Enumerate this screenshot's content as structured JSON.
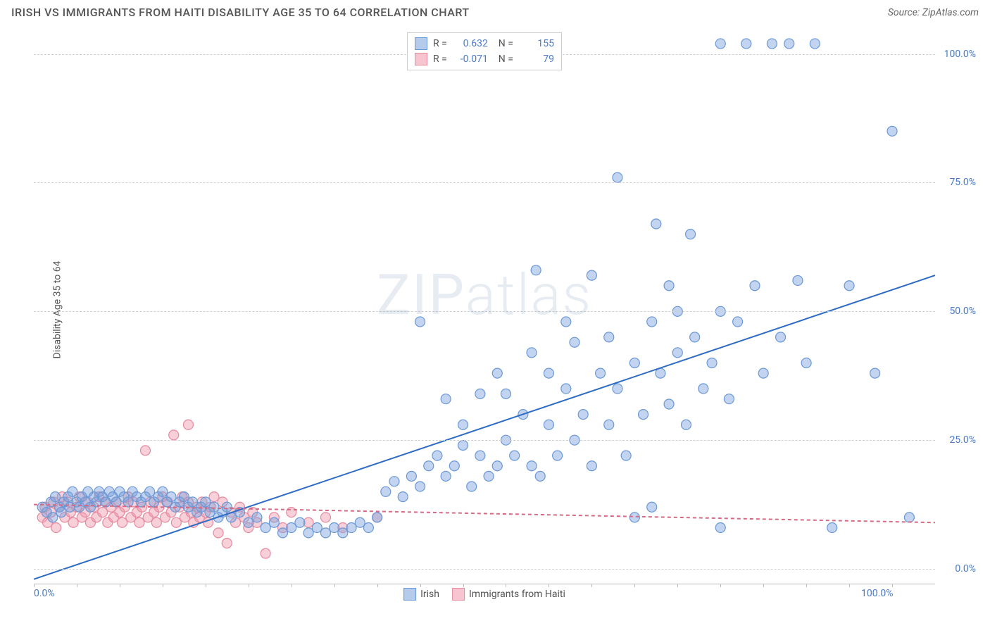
{
  "header": {
    "title": "IRISH VS IMMIGRANTS FROM HAITI DISABILITY AGE 35 TO 64 CORRELATION CHART",
    "source": "Source: ZipAtlas.com"
  },
  "chart": {
    "type": "scatter",
    "ylabel": "Disability Age 35 to 64",
    "xlim": [
      0,
      105
    ],
    "ylim": [
      -3,
      105
    ],
    "ytick_values": [
      0,
      25,
      50,
      75,
      100
    ],
    "ytick_labels": [
      "0.0%",
      "25.0%",
      "50.0%",
      "75.0%",
      "100.0%"
    ],
    "xtick_values_minor": [
      0,
      5,
      10,
      15,
      20,
      25,
      30,
      35,
      40,
      45,
      50,
      55,
      60,
      65,
      70,
      75,
      80,
      85,
      90,
      95,
      100
    ],
    "xtick_labels": {
      "0": "0.0%",
      "100": "100.0%"
    },
    "grid_color": "#d0d0d0",
    "axis_color": "#bbbbbb",
    "background_color": "#ffffff",
    "marker_radius": 7,
    "marker_stroke_width": 1.2,
    "line_width": 2,
    "dash_pattern": "5,4",
    "watermark": "ZIPatlas",
    "series": [
      {
        "name": "Irish",
        "fill_color": "rgba(120,160,220,0.45)",
        "stroke_color": "#6b98d6",
        "trend_color": "#2d6bc4",
        "trend_solid": true,
        "trend": {
          "x1": 0,
          "y1": -2,
          "x2": 105,
          "y2": 57
        },
        "R": "0.632",
        "N": "155",
        "points": [
          [
            1,
            12
          ],
          [
            1.5,
            11
          ],
          [
            2,
            13
          ],
          [
            2.2,
            10
          ],
          [
            2.5,
            14
          ],
          [
            3,
            12
          ],
          [
            3.2,
            11
          ],
          [
            3.5,
            13
          ],
          [
            4,
            14
          ],
          [
            4.2,
            12
          ],
          [
            4.5,
            15
          ],
          [
            5,
            13
          ],
          [
            5.3,
            12
          ],
          [
            5.6,
            14
          ],
          [
            6,
            13
          ],
          [
            6.3,
            15
          ],
          [
            6.6,
            12
          ],
          [
            7,
            14
          ],
          [
            7.3,
            13
          ],
          [
            7.6,
            15
          ],
          [
            8,
            14
          ],
          [
            8.4,
            13
          ],
          [
            8.8,
            15
          ],
          [
            9.2,
            14
          ],
          [
            9.6,
            13
          ],
          [
            10,
            15
          ],
          [
            10.5,
            14
          ],
          [
            11,
            13
          ],
          [
            11.5,
            15
          ],
          [
            12,
            14
          ],
          [
            12.5,
            13
          ],
          [
            13,
            14
          ],
          [
            13.5,
            15
          ],
          [
            14,
            13
          ],
          [
            14.5,
            14
          ],
          [
            15,
            15
          ],
          [
            15.5,
            13
          ],
          [
            16,
            14
          ],
          [
            16.5,
            12
          ],
          [
            17,
            13
          ],
          [
            17.5,
            14
          ],
          [
            18,
            12
          ],
          [
            18.5,
            13
          ],
          [
            19,
            11
          ],
          [
            19.5,
            12
          ],
          [
            20,
            13
          ],
          [
            20.5,
            11
          ],
          [
            21,
            12
          ],
          [
            21.5,
            10
          ],
          [
            22,
            11
          ],
          [
            22.5,
            12
          ],
          [
            23,
            10
          ],
          [
            24,
            11
          ],
          [
            25,
            9
          ],
          [
            26,
            10
          ],
          [
            27,
            8
          ],
          [
            28,
            9
          ],
          [
            29,
            7
          ],
          [
            30,
            8
          ],
          [
            31,
            9
          ],
          [
            32,
            7
          ],
          [
            33,
            8
          ],
          [
            34,
            7
          ],
          [
            35,
            8
          ],
          [
            36,
            7
          ],
          [
            37,
            8
          ],
          [
            38,
            9
          ],
          [
            39,
            8
          ],
          [
            40,
            10
          ],
          [
            41,
            15
          ],
          [
            42,
            17
          ],
          [
            43,
            14
          ],
          [
            44,
            18
          ],
          [
            45,
            16
          ],
          [
            45,
            48
          ],
          [
            46,
            20
          ],
          [
            47,
            22
          ],
          [
            48,
            18
          ],
          [
            48,
            33
          ],
          [
            49,
            20
          ],
          [
            50,
            24
          ],
          [
            50,
            28
          ],
          [
            51,
            16
          ],
          [
            52,
            22
          ],
          [
            52,
            34
          ],
          [
            53,
            18
          ],
          [
            54,
            20
          ],
          [
            54,
            38
          ],
          [
            55,
            25
          ],
          [
            55,
            34
          ],
          [
            56,
            22
          ],
          [
            57,
            30
          ],
          [
            58,
            20
          ],
          [
            58,
            42
          ],
          [
            58.5,
            58
          ],
          [
            59,
            18
          ],
          [
            60,
            28
          ],
          [
            60,
            38
          ],
          [
            61,
            22
          ],
          [
            62,
            35
          ],
          [
            62,
            48
          ],
          [
            63,
            25
          ],
          [
            63,
            44
          ],
          [
            64,
            30
          ],
          [
            65,
            20
          ],
          [
            65,
            57
          ],
          [
            66,
            38
          ],
          [
            67,
            28
          ],
          [
            67,
            45
          ],
          [
            68,
            35
          ],
          [
            68,
            76
          ],
          [
            69,
            22
          ],
          [
            70,
            40
          ],
          [
            70,
            10
          ],
          [
            71,
            30
          ],
          [
            72,
            48
          ],
          [
            72,
            12
          ],
          [
            72.5,
            67
          ],
          [
            73,
            38
          ],
          [
            74,
            32
          ],
          [
            74,
            55
          ],
          [
            75,
            42
          ],
          [
            75,
            50
          ],
          [
            76,
            28
          ],
          [
            76.5,
            65
          ],
          [
            77,
            45
          ],
          [
            78,
            35
          ],
          [
            79,
            40
          ],
          [
            80,
            8
          ],
          [
            80,
            50
          ],
          [
            80,
            102
          ],
          [
            81,
            33
          ],
          [
            82,
            48
          ],
          [
            83,
            102
          ],
          [
            84,
            55
          ],
          [
            85,
            38
          ],
          [
            86,
            102
          ],
          [
            87,
            45
          ],
          [
            88,
            102
          ],
          [
            89,
            56
          ],
          [
            90,
            40
          ],
          [
            91,
            102
          ],
          [
            93,
            8
          ],
          [
            95,
            55
          ],
          [
            98,
            38
          ],
          [
            100,
            85
          ],
          [
            102,
            10
          ]
        ]
      },
      {
        "name": "Immigrants from Haiti",
        "fill_color": "rgba(240,150,170,0.45)",
        "stroke_color": "#e68aa0",
        "trend_color": "#d46a85",
        "trend_solid": false,
        "trend": {
          "x1": 0,
          "y1": 12.5,
          "x2": 105,
          "y2": 9
        },
        "R": "-0.071",
        "N": "79",
        "points": [
          [
            1,
            10
          ],
          [
            1.3,
            12
          ],
          [
            1.6,
            9
          ],
          [
            2,
            11
          ],
          [
            2.3,
            13
          ],
          [
            2.6,
            8
          ],
          [
            3,
            12
          ],
          [
            3.3,
            14
          ],
          [
            3.6,
            10
          ],
          [
            4,
            13
          ],
          [
            4.3,
            11
          ],
          [
            4.6,
            9
          ],
          [
            5,
            12
          ],
          [
            5.3,
            14
          ],
          [
            5.6,
            10
          ],
          [
            6,
            11
          ],
          [
            6.3,
            13
          ],
          [
            6.6,
            9
          ],
          [
            7,
            12
          ],
          [
            7.3,
            10
          ],
          [
            7.6,
            14
          ],
          [
            8,
            11
          ],
          [
            8.3,
            13
          ],
          [
            8.6,
            9
          ],
          [
            9,
            12
          ],
          [
            9.3,
            10
          ],
          [
            9.6,
            13
          ],
          [
            10,
            11
          ],
          [
            10.3,
            9
          ],
          [
            10.6,
            12
          ],
          [
            11,
            14
          ],
          [
            11.3,
            10
          ],
          [
            11.6,
            13
          ],
          [
            12,
            11
          ],
          [
            12.3,
            9
          ],
          [
            12.6,
            12
          ],
          [
            13,
            23
          ],
          [
            13.3,
            10
          ],
          [
            13.6,
            13
          ],
          [
            14,
            11
          ],
          [
            14.3,
            9
          ],
          [
            14.6,
            12
          ],
          [
            15,
            14
          ],
          [
            15.3,
            10
          ],
          [
            15.6,
            13
          ],
          [
            16,
            11
          ],
          [
            16.3,
            26
          ],
          [
            16.6,
            9
          ],
          [
            17,
            12
          ],
          [
            17.3,
            14
          ],
          [
            17.6,
            10
          ],
          [
            18,
            13
          ],
          [
            18,
            28
          ],
          [
            18.3,
            11
          ],
          [
            18.6,
            9
          ],
          [
            19,
            12
          ],
          [
            19.3,
            10
          ],
          [
            19.6,
            13
          ],
          [
            20,
            11
          ],
          [
            20.3,
            9
          ],
          [
            20.6,
            12
          ],
          [
            21,
            14
          ],
          [
            21.5,
            7
          ],
          [
            22,
            13
          ],
          [
            22.5,
            5
          ],
          [
            23,
            11
          ],
          [
            23.5,
            9
          ],
          [
            24,
            12
          ],
          [
            24.5,
            10
          ],
          [
            25,
            8
          ],
          [
            25.5,
            11
          ],
          [
            26,
            9
          ],
          [
            27,
            3
          ],
          [
            28,
            10
          ],
          [
            29,
            8
          ],
          [
            30,
            11
          ],
          [
            32,
            9
          ],
          [
            34,
            10
          ],
          [
            36,
            8
          ],
          [
            40,
            10
          ]
        ]
      }
    ],
    "legend_bottom": [
      {
        "label": "Irish",
        "fill": "rgba(120,160,220,0.55)",
        "stroke": "#6b98d6"
      },
      {
        "label": "Immigrants from Haiti",
        "fill": "rgba(240,150,170,0.55)",
        "stroke": "#e68aa0"
      }
    ]
  }
}
